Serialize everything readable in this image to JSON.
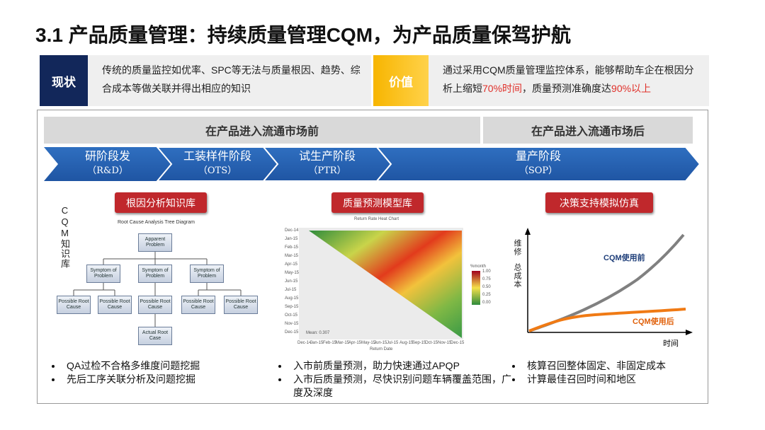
{
  "title": "3.1 产品质量管理：持续质量管理CQM，为产品质量保驾护航",
  "status_box": {
    "label": "现状",
    "text": "传统的质量监控如优率、SPC等无法与质量根因、趋势、综合成本等做关联并得出相应的知识"
  },
  "value_box": {
    "label": "价值",
    "text_parts": [
      "通过采用CQM质量管理监控体系，能够帮助车企在根因分析上缩短",
      "70%时间",
      "，质量预测准确度达",
      "90%以上"
    ]
  },
  "phase_headers": [
    "在产品进入流通市场前",
    "在产品进入流通市场后"
  ],
  "stages": [
    {
      "name": "研阶段发",
      "code": "（R&D）"
    },
    {
      "name": "工装样件阶段",
      "code": "（OTS）"
    },
    {
      "name": "试生产阶段",
      "code": "（PTR）"
    },
    {
      "name": "量产阶段",
      "code": "（SOP）"
    }
  ],
  "side_label": "CQM知识库",
  "sections": [
    {
      "title": "根因分析知识库",
      "bullets": [
        "QA过检不合格多维度问题挖掘",
        "先后工序关联分析及问题挖掘"
      ]
    },
    {
      "title": "质量预测模型库",
      "bullets": [
        "入市前质量预测，助力快速通过APQP",
        "入市后质量预测，尽快识别问题车辆覆盖范围，广度及深度"
      ]
    },
    {
      "title": "决策支持模拟仿真",
      "bullets": [
        "核算召回整体固定、非固定成本",
        "计算最佳召回时间和地区"
      ]
    }
  ],
  "tree": {
    "title": "Root Cause Analysis Tree Diagram",
    "root": "Apparent Problem",
    "symptoms": [
      "Symptom of Problem",
      "Symptom of Problem",
      "Symptom of Problem"
    ],
    "causes": [
      "Possible Root Cause",
      "Possible Root Cause",
      "Possible Root Cause",
      "Possible Root Cause",
      "Possible Root Cause"
    ],
    "actual": "Actual Root Case"
  },
  "heatmap": {
    "title": "Return Rate Heat Chart",
    "x_label": "Return Date",
    "legend_title": "%month",
    "legend_ticks": [
      "1.00",
      "0.75",
      "0.50",
      "0.25",
      "0.00"
    ],
    "mean_label": "Mean: 0.307",
    "y_ticks": [
      "Dec-14",
      "Jan-15",
      "Feb-15",
      "Mar-15",
      "Apr-15",
      "May-15",
      "Jun-15",
      "Jul-15",
      "Aug-15",
      "Sep-15",
      "Oct-15",
      "Nov-15",
      "Dec-15"
    ],
    "x_ticks": [
      "Dec-14",
      "Jan-15",
      "Feb-15",
      "Mar-15",
      "Apr-15",
      "May-15",
      "Jun-15",
      "Jul-15",
      "Aug-15",
      "Sep-15",
      "Oct-15",
      "Nov-15",
      "Dec-15"
    ]
  },
  "cost_chart": {
    "y_label_1": "维修",
    "y_label_2": "总成本",
    "x_label": "时间",
    "before_label": "CQM使用前",
    "after_label": "CQM使用后"
  }
}
